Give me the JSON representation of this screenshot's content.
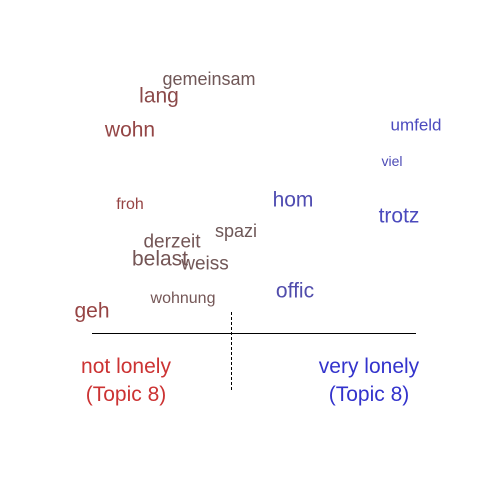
{
  "words": [
    {
      "text": "gemeinsam",
      "weight": 0.1,
      "lean": 0.18
    },
    {
      "text": "lang",
      "weight": 0.05,
      "lean": 0.22
    },
    {
      "text": "wohn",
      "weight": 0.0,
      "lean": 0.35
    },
    {
      "text": "umfeld",
      "weight": 0.92,
      "lean": 0.98
    },
    {
      "text": "viel",
      "weight": 0.88,
      "lean": 0.9
    },
    {
      "text": "froh",
      "weight": 0.0,
      "lean": 0.4
    },
    {
      "text": "hom",
      "weight": 0.72,
      "lean": 0.85
    },
    {
      "text": "trotz",
      "weight": 0.9,
      "lean": 0.97
    },
    {
      "text": "spazi",
      "weight": 0.3,
      "lean": 0.1
    },
    {
      "text": "derzeit",
      "weight": 0.12,
      "lean": 0.25
    },
    {
      "text": "belast",
      "weight": 0.1,
      "lean": 0.3
    },
    {
      "text": "weiss",
      "weight": 0.2,
      "lean": 0.2
    },
    {
      "text": "offic",
      "weight": 0.7,
      "lean": 0.8
    },
    {
      "text": "wohnung",
      "weight": 0.15,
      "lean": 0.28
    },
    {
      "text": "geh",
      "weight": 0.0,
      "lean": 0.4
    }
  ],
  "poles": {
    "left": {
      "line1": "not lonely",
      "line2": "(Topic 8)",
      "color": "#cc3333"
    },
    "right": {
      "line1": "very lonely",
      "line2": "(Topic 8)",
      "color": "#3333cc"
    }
  },
  "colors": {
    "warm": "#a83a3a",
    "neutral": "#6b5a5a",
    "cool": "#4a4ac0",
    "axis": "#000000"
  }
}
